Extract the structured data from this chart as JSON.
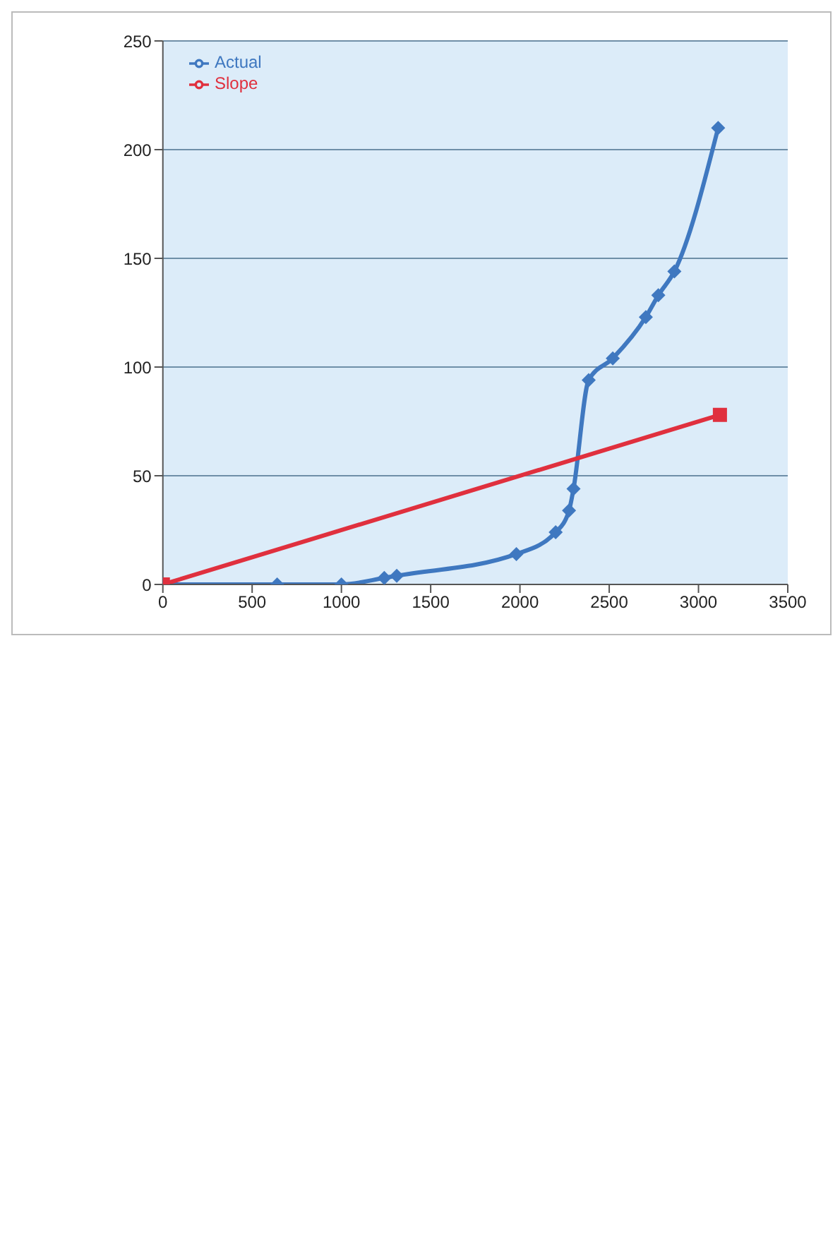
{
  "chart_data": {
    "type": "line",
    "xlim": [
      0,
      3500
    ],
    "xticks": [
      0,
      500,
      1000,
      1500,
      2000,
      2500,
      3000,
      3500
    ],
    "ylim": [
      0,
      250
    ],
    "yticks": [
      0,
      50,
      100,
      150,
      200,
      250
    ],
    "grid": "y",
    "legend": "top left",
    "series": [
      {
        "name": "Actual",
        "color": "#3f78c0",
        "marker": "diamond",
        "x": [
          0,
          640,
          1000,
          1240,
          1310,
          1980,
          2200,
          2275,
          2300,
          2385,
          2520,
          2705,
          2775,
          2865,
          3110
        ],
        "values": [
          0,
          0,
          0,
          3,
          4,
          14,
          24,
          34,
          44,
          94,
          104,
          123,
          133,
          144,
          210
        ]
      },
      {
        "name": "Slope",
        "color": "#e0303e",
        "marker": "square",
        "x": [
          0,
          3120
        ],
        "values": [
          0,
          78
        ]
      }
    ]
  }
}
